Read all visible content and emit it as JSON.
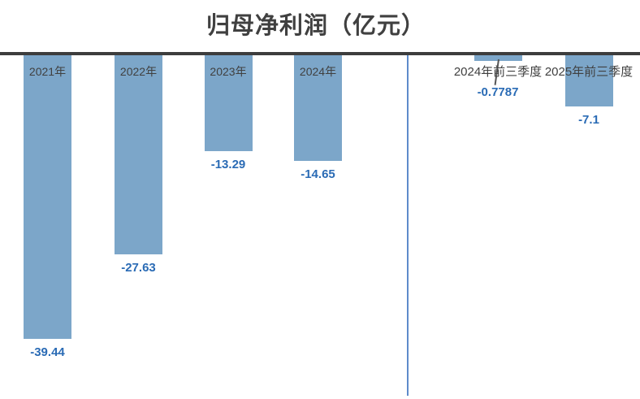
{
  "title": "归母净利润（亿元）",
  "chart_data": {
    "type": "bar",
    "title": "归母净利润（亿元）",
    "categories": [
      "2021年",
      "2022年",
      "2023年",
      "2024年",
      "2024年前三季度",
      "2025年前三季度"
    ],
    "values": [
      -39.44,
      -27.63,
      -13.29,
      -14.65,
      -0.7787,
      -7.1
    ],
    "value_labels": [
      "-39.44",
      "-27.63",
      "-13.29",
      "-14.65",
      "-0.7787",
      "-7.1"
    ],
    "xlabel": "",
    "ylabel": "",
    "ylim": [
      -45,
      0
    ],
    "baseline": "zero-at-top",
    "grid": false,
    "legend": "none",
    "label_layout": [
      "inside",
      "inside",
      "inside",
      "inside",
      "outside",
      "outside"
    ],
    "leader_line_index": 4,
    "group_divider_after_index": 3
  },
  "colors": {
    "bar": "#7CA6C9",
    "value_label": "#2A6BB5",
    "category_label": "#404040",
    "title": "#404040",
    "axis_line": "#3D3D3D",
    "divider_line": "#5E8BCB",
    "leader_line": "#555555",
    "background": "#FFFFFF"
  }
}
